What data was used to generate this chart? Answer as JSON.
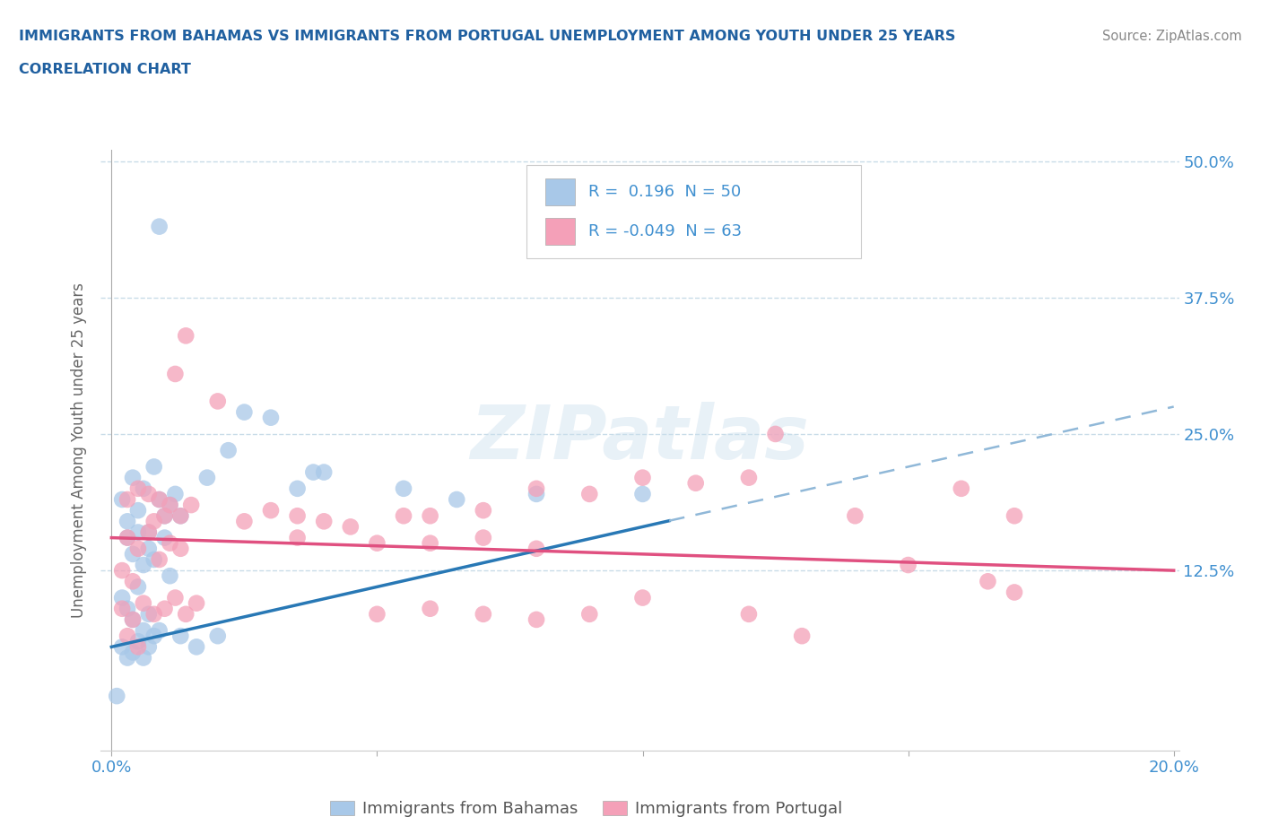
{
  "title_line1": "IMMIGRANTS FROM BAHAMAS VS IMMIGRANTS FROM PORTUGAL UNEMPLOYMENT AMONG YOUTH UNDER 25 YEARS",
  "title_line2": "CORRELATION CHART",
  "source_text": "Source: ZipAtlas.com",
  "watermark": "ZIPatlas",
  "ylabel": "Unemployment Among Youth under 25 years",
  "bahamas_R": 0.196,
  "bahamas_N": 50,
  "portugal_R": -0.049,
  "portugal_N": 63,
  "bahamas_color": "#a8c8e8",
  "bahamas_line_color": "#2878b5",
  "bahamas_line_dash_color": "#90b8d8",
  "portugal_color": "#f4a0b8",
  "portugal_line_color": "#e05080",
  "title_color": "#2060a0",
  "tick_label_color": "#4090d0",
  "source_color": "#888888",
  "ylabel_color": "#666666",
  "grid_color": "#c8dce8",
  "background_color": "#ffffff",
  "legend_bottom_color": "#555555",
  "xlim": [
    0.0,
    0.2
  ],
  "ylim": [
    0.0,
    0.5
  ],
  "x_tick_positions": [
    0.0,
    0.05,
    0.1,
    0.15,
    0.2
  ],
  "x_tick_labels": [
    "0.0%",
    "",
    "",
    "",
    "20.0%"
  ],
  "y_tick_positions": [
    0.0,
    0.125,
    0.25,
    0.375,
    0.5
  ],
  "y_right_labels": [
    "12.5%",
    "25.0%",
    "37.5%",
    "50.0%"
  ],
  "bahamas_trend_x0": 0.0,
  "bahamas_trend_x_solid_end": 0.105,
  "bahamas_trend_x1": 0.2,
  "bahamas_trend_y0": 0.055,
  "bahamas_trend_y1": 0.275,
  "portugal_trend_x0": 0.0,
  "portugal_trend_x1": 0.2,
  "portugal_trend_y0": 0.155,
  "portugal_trend_y1": 0.125,
  "scatter_size": 180,
  "scatter_alpha": 0.75
}
